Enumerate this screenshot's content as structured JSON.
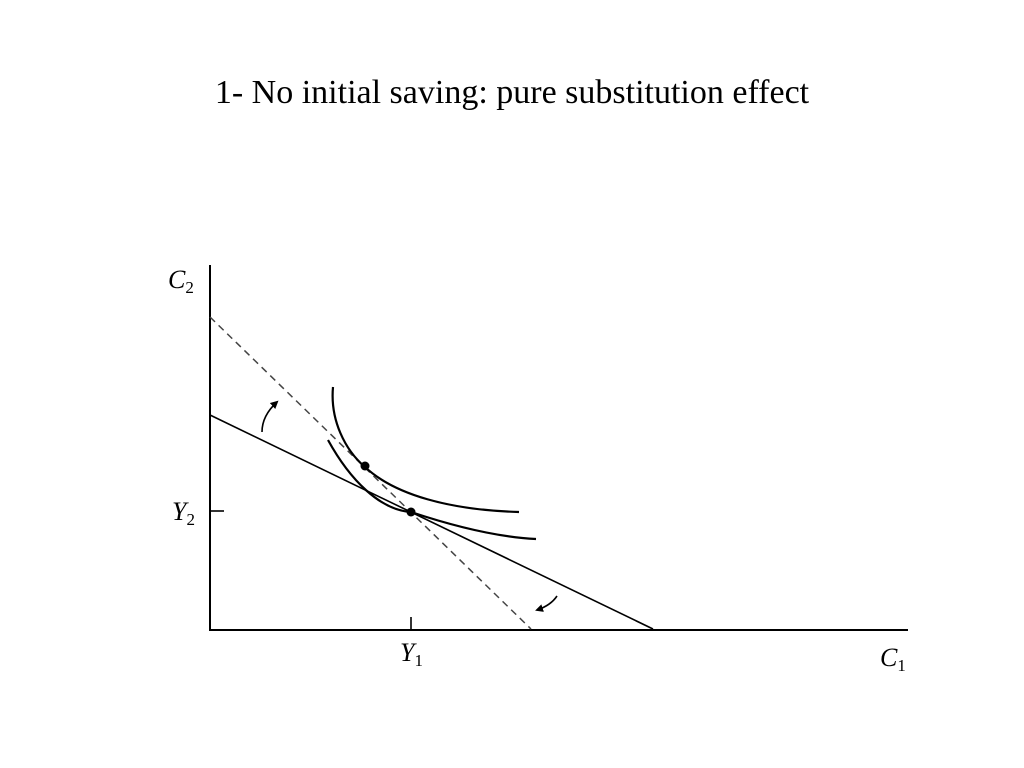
{
  "slide": {
    "title": "1- No initial saving: pure substitution effect"
  },
  "diagram": {
    "y_axis": {
      "letter": "C",
      "subscript": "2"
    },
    "x_axis": {
      "letter": "C",
      "subscript": "1"
    },
    "y_tick": {
      "letter": "Y",
      "subscript": "2"
    },
    "x_tick": {
      "letter": "Y",
      "subscript": "1"
    },
    "elements": {
      "original_budget_line": "solid",
      "new_budget_line": "dashed",
      "indifference_curves": 2,
      "tangency_points": 2,
      "rotation_arrows": 2
    },
    "colors": {
      "ink": "#000000",
      "dashed_line": "#444444",
      "background": "#ffffff"
    }
  }
}
